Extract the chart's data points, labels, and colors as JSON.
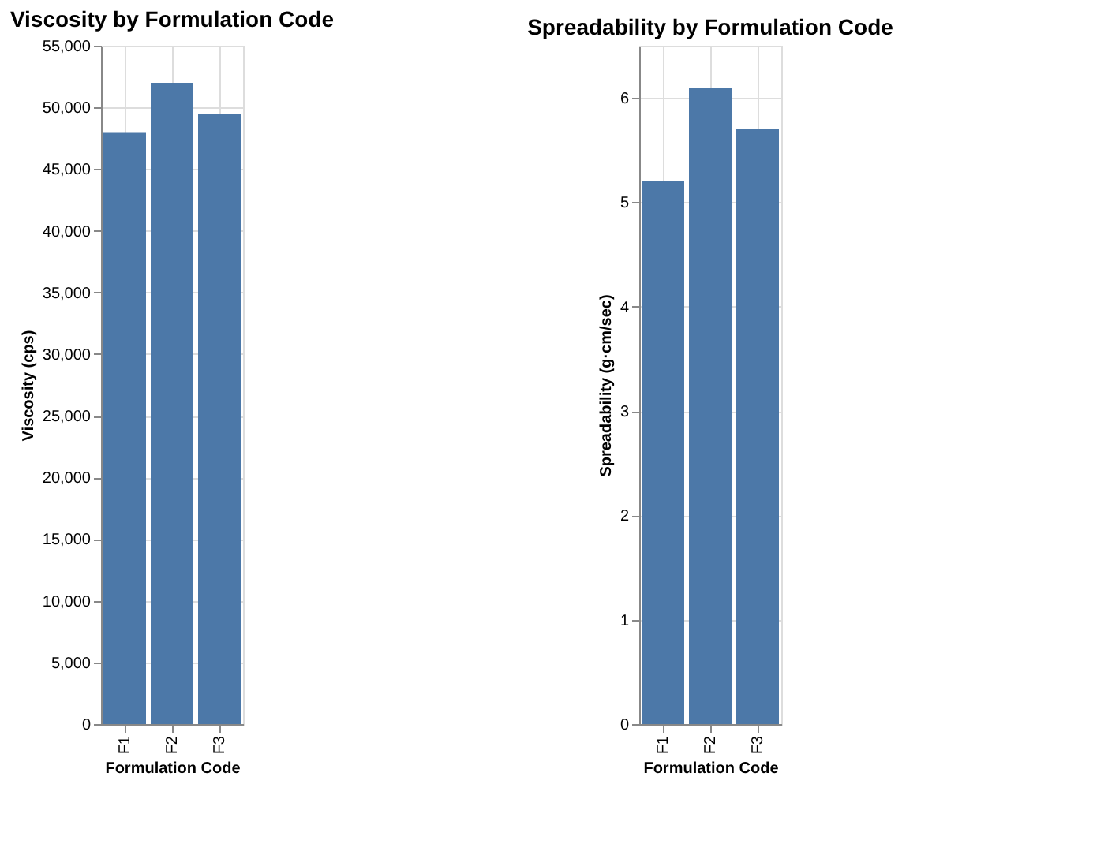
{
  "chart_data": [
    {
      "type": "bar",
      "title": "Viscosity by Formulation Code",
      "xlabel": "Formulation Code",
      "ylabel": "Viscosity (cps)",
      "categories": [
        "F1",
        "F2",
        "F3"
      ],
      "values": [
        48000,
        52000,
        49500
      ],
      "color": "#4c78a8",
      "ylim": [
        0,
        55000
      ],
      "yticks": [
        0,
        {
          "value": 5000,
          "label": "5,000"
        },
        {
          "value": 10000,
          "label": "10,000"
        },
        {
          "value": 15000,
          "label": "15,000"
        },
        {
          "value": 20000,
          "label": "20,000"
        },
        {
          "value": 25000,
          "label": "25,000"
        },
        {
          "value": 30000,
          "label": "30,000"
        },
        {
          "value": 35000,
          "label": "35,000"
        },
        {
          "value": 40000,
          "label": "40,000"
        },
        {
          "value": 45000,
          "label": "45,000"
        },
        {
          "value": 50000,
          "label": "50,000"
        },
        {
          "value": 55000,
          "label": "55,000"
        }
      ],
      "grid": true
    },
    {
      "type": "bar",
      "title": "Spreadability by Formulation Code",
      "xlabel": "Formulation Code",
      "ylabel": "Spreadability (g·cm/sec)",
      "categories": [
        "F1",
        "F2",
        "F3"
      ],
      "values": [
        5.2,
        6.1,
        5.7
      ],
      "color": "#4c78a8",
      "ylim": [
        0,
        6.5
      ],
      "yticks": [
        0,
        1,
        2,
        3,
        4,
        5,
        6
      ],
      "grid": true
    }
  ]
}
